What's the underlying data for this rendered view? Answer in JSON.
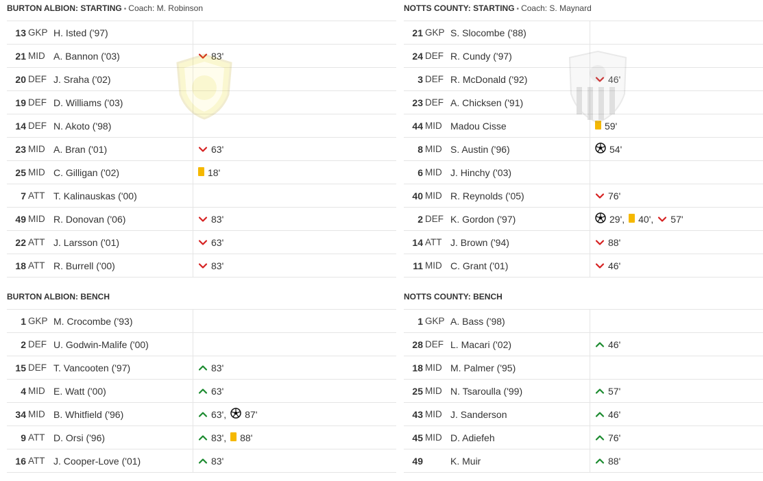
{
  "home": {
    "starting_header": {
      "team": "BURTON ALBION: STARTING",
      "coach": "Coach: M. Robinson"
    },
    "bench_header": {
      "team": "BURTON ALBION: BENCH"
    },
    "crest_icon": "brewers-crest-icon",
    "starting": [
      {
        "num": "13",
        "pos": "GKP",
        "name": "H. Isted ('97)",
        "events": []
      },
      {
        "num": "21",
        "pos": "MID",
        "name": "A. Bannon ('03)",
        "events": [
          {
            "type": "sub-off",
            "min": "83'"
          }
        ]
      },
      {
        "num": "20",
        "pos": "DEF",
        "name": "J. Sraha ('02)",
        "events": []
      },
      {
        "num": "19",
        "pos": "DEF",
        "name": "D. Williams ('03)",
        "events": []
      },
      {
        "num": "14",
        "pos": "DEF",
        "name": "N. Akoto ('98)",
        "events": []
      },
      {
        "num": "23",
        "pos": "MID",
        "name": "A. Bran ('01)",
        "events": [
          {
            "type": "sub-off",
            "min": "63'"
          }
        ]
      },
      {
        "num": "25",
        "pos": "MID",
        "name": "C. Gilligan ('02)",
        "events": [
          {
            "type": "yellow",
            "min": "18'"
          }
        ]
      },
      {
        "num": "7",
        "pos": "ATT",
        "name": "T. Kalinauskas ('00)",
        "events": []
      },
      {
        "num": "49",
        "pos": "MID",
        "name": "R. Donovan ('06)",
        "events": [
          {
            "type": "sub-off",
            "min": "83'"
          }
        ]
      },
      {
        "num": "22",
        "pos": "ATT",
        "name": "J. Larsson ('01)",
        "events": [
          {
            "type": "sub-off",
            "min": "63'"
          }
        ]
      },
      {
        "num": "18",
        "pos": "ATT",
        "name": "R. Burrell ('00)",
        "events": [
          {
            "type": "sub-off",
            "min": "83'"
          }
        ]
      }
    ],
    "bench": [
      {
        "num": "1",
        "pos": "GKP",
        "name": "M. Crocombe ('93)",
        "events": []
      },
      {
        "num": "2",
        "pos": "DEF",
        "name": "U. Godwin-Malife ('00)",
        "events": []
      },
      {
        "num": "15",
        "pos": "DEF",
        "name": "T. Vancooten ('97)",
        "events": [
          {
            "type": "sub-on",
            "min": "83'"
          }
        ]
      },
      {
        "num": "4",
        "pos": "MID",
        "name": "E. Watt ('00)",
        "events": [
          {
            "type": "sub-on",
            "min": "63'"
          }
        ]
      },
      {
        "num": "34",
        "pos": "MID",
        "name": "B. Whitfield ('96)",
        "events": [
          {
            "type": "sub-on",
            "min": "63'"
          },
          {
            "type": "goal",
            "min": "87'"
          }
        ]
      },
      {
        "num": "9",
        "pos": "ATT",
        "name": "D. Orsi ('96)",
        "events": [
          {
            "type": "sub-on",
            "min": "83'"
          },
          {
            "type": "yellow",
            "min": "88'"
          }
        ]
      },
      {
        "num": "16",
        "pos": "ATT",
        "name": "J. Cooper-Love ('01)",
        "events": [
          {
            "type": "sub-on",
            "min": "83'"
          }
        ]
      }
    ]
  },
  "away": {
    "starting_header": {
      "team": "NOTTS COUNTY: STARTING",
      "coach": "Coach: S. Maynard"
    },
    "bench_header": {
      "team": "NOTTS COUNTY: BENCH"
    },
    "crest_icon": "notts-county-crest-icon",
    "starting": [
      {
        "num": "21",
        "pos": "GKP",
        "name": "S. Slocombe ('88)",
        "events": []
      },
      {
        "num": "24",
        "pos": "DEF",
        "name": "R. Cundy ('97)",
        "events": []
      },
      {
        "num": "3",
        "pos": "DEF",
        "name": "R. McDonald ('92)",
        "events": [
          {
            "type": "sub-off",
            "min": "46'"
          }
        ]
      },
      {
        "num": "23",
        "pos": "DEF",
        "name": "A. Chicksen ('91)",
        "events": []
      },
      {
        "num": "44",
        "pos": "MID",
        "name": "Madou Cisse",
        "events": [
          {
            "type": "yellow",
            "min": "59'"
          }
        ]
      },
      {
        "num": "8",
        "pos": "MID",
        "name": "S. Austin ('96)",
        "events": [
          {
            "type": "goal",
            "min": "54'"
          }
        ]
      },
      {
        "num": "6",
        "pos": "MID",
        "name": "J. Hinchy ('03)",
        "events": []
      },
      {
        "num": "40",
        "pos": "MID",
        "name": "R. Reynolds ('05)",
        "events": [
          {
            "type": "sub-off",
            "min": "76'"
          }
        ]
      },
      {
        "num": "2",
        "pos": "DEF",
        "name": "K. Gordon ('97)",
        "events": [
          {
            "type": "goal",
            "min": "29'"
          },
          {
            "type": "yellow",
            "min": "40'"
          },
          {
            "type": "sub-off",
            "min": "57'"
          }
        ]
      },
      {
        "num": "14",
        "pos": "ATT",
        "name": "J. Brown ('94)",
        "events": [
          {
            "type": "sub-off",
            "min": "88'"
          }
        ]
      },
      {
        "num": "11",
        "pos": "MID",
        "name": "C. Grant ('01)",
        "events": [
          {
            "type": "sub-off",
            "min": "46'"
          }
        ]
      }
    ],
    "bench": [
      {
        "num": "1",
        "pos": "GKP",
        "name": "A. Bass ('98)",
        "events": []
      },
      {
        "num": "28",
        "pos": "DEF",
        "name": "L. Macari ('02)",
        "events": [
          {
            "type": "sub-on",
            "min": "46'"
          }
        ]
      },
      {
        "num": "18",
        "pos": "MID",
        "name": "M. Palmer ('95)",
        "events": []
      },
      {
        "num": "25",
        "pos": "MID",
        "name": "N. Tsaroulla ('99)",
        "events": [
          {
            "type": "sub-on",
            "min": "57'"
          }
        ]
      },
      {
        "num": "43",
        "pos": "MID",
        "name": "J. Sanderson",
        "events": [
          {
            "type": "sub-on",
            "min": "46'"
          }
        ]
      },
      {
        "num": "45",
        "pos": "MID",
        "name": "D. Adiefeh",
        "events": [
          {
            "type": "sub-on",
            "min": "76'"
          }
        ]
      },
      {
        "num": "49",
        "pos": "",
        "name": "K. Muir",
        "events": [
          {
            "type": "sub-on",
            "min": "88'"
          }
        ]
      }
    ]
  },
  "icons": {
    "sub-off": "chevron-down-red-icon",
    "sub-on": "chevron-up-green-icon",
    "yellow": "yellow-card-icon",
    "goal": "football-icon"
  },
  "colors": {
    "sub_off": "#d62020",
    "sub_on": "#1a8a2e",
    "yellow_card": "#f5b800",
    "divider": "#e5e5e5"
  }
}
